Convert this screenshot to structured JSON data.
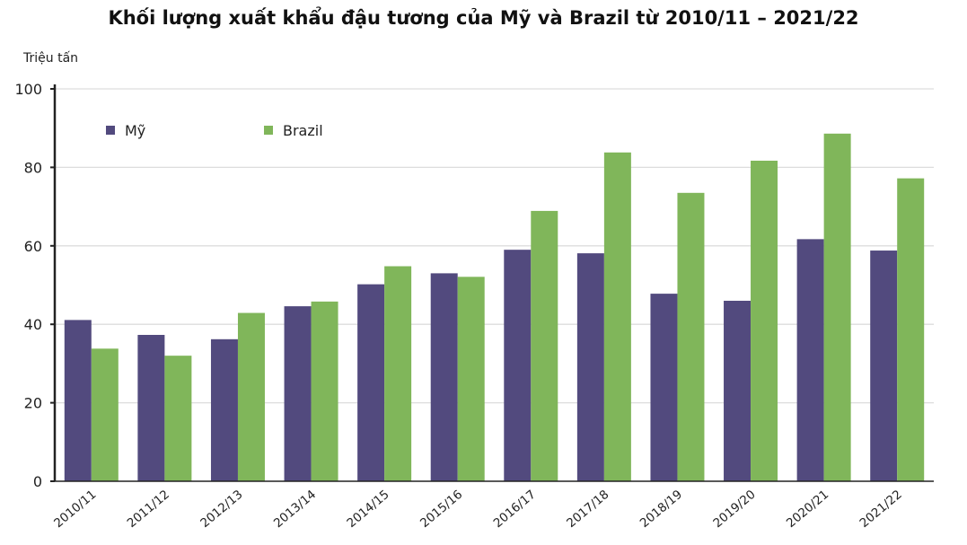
{
  "chart_data": {
    "type": "bar",
    "title": "Khối lượng xuất khẩu đậu tương của Mỹ và Brazil từ 2010/11 – 2021/22",
    "xlabel": "",
    "ylabel": "Triệu tấn",
    "ylim": [
      0,
      100
    ],
    "yticks": [
      0,
      20,
      40,
      60,
      80,
      100
    ],
    "grid": true,
    "legend": "top-left",
    "categories": [
      "2010/11",
      "2011/12",
      "2012/13",
      "2013/14",
      "2014/15",
      "2015/16",
      "2016/17",
      "2017/18",
      "2018/19",
      "2019/20",
      "2020/21",
      "2021/22"
    ],
    "series": [
      {
        "name": "Mỹ",
        "color": "#524a7e",
        "values": [
          41.1,
          37.3,
          36.2,
          44.6,
          50.2,
          53.0,
          59.0,
          58.1,
          47.8,
          46.0,
          61.7,
          58.8
        ]
      },
      {
        "name": "Brazil",
        "color": "#80b65a",
        "values": [
          33.8,
          32.0,
          42.9,
          45.8,
          54.8,
          52.1,
          68.9,
          83.8,
          73.5,
          81.7,
          88.6,
          77.2
        ]
      }
    ]
  }
}
